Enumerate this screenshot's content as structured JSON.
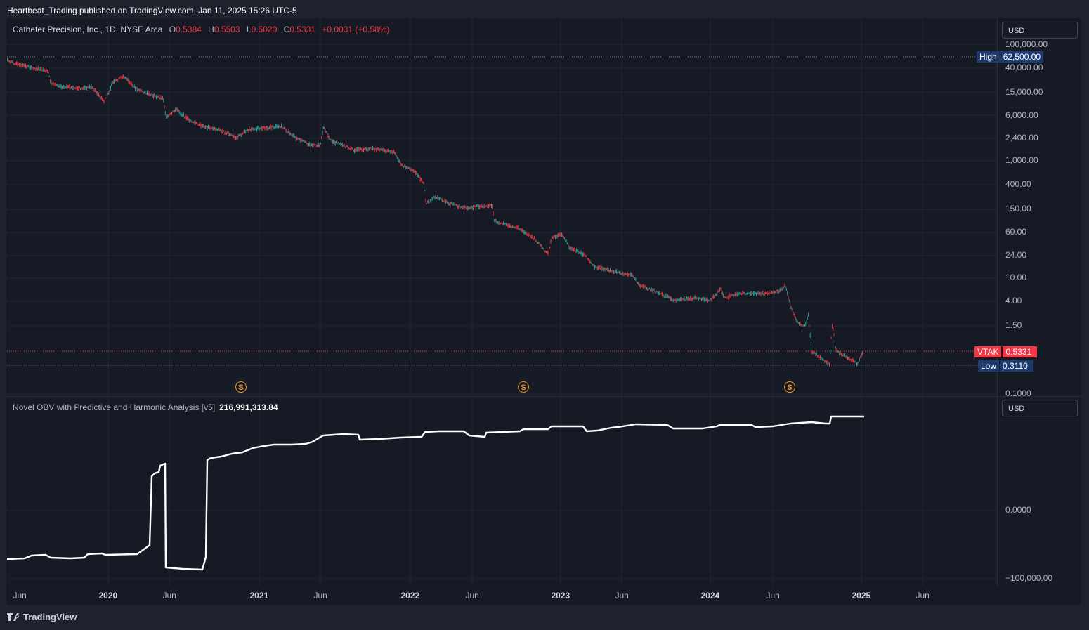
{
  "publish_bar": "Heartbeat_Trading published on TradingView.com, Jan 11, 2025 15:26 UTC-5",
  "legend": {
    "symbol": "Catheter Precision, Inc., 1D, NYSE Arca",
    "open_label": "O",
    "open": "0.5384",
    "high_label": "H",
    "high": "0.5503",
    "low_label": "L",
    "low": "0.5020",
    "close_label": "C",
    "close": "0.5331",
    "change": "+0.0031 (+0.58%)"
  },
  "currency_main": "USD",
  "currency_indicator": "USD",
  "price_axis": [
    "100,000.00",
    "40,000.00",
    "15,000.00",
    "6,000.00",
    "2,400.00",
    "1,000.00",
    "400.00",
    "150.00",
    "60.00",
    "24.00",
    "10.00",
    "4.00",
    "1.50",
    "0.1000"
  ],
  "high_tag": {
    "label": "High",
    "value": "62,500.00"
  },
  "last_tag": {
    "label": "VTAK",
    "value": "0.5331"
  },
  "low_tag": {
    "label": "Low",
    "value": "0.3110"
  },
  "indicator": {
    "name": "Novel OBV with Predictive and Harmonic Analysis [v5]",
    "value": "216,991,313.84"
  },
  "indicator_axis": [
    "0.0000",
    "−100,000.00"
  ],
  "time_axis": [
    {
      "text": "Jun",
      "bold": false
    },
    {
      "text": "2020",
      "bold": true
    },
    {
      "text": "Jun",
      "bold": false
    },
    {
      "text": "2021",
      "bold": true
    },
    {
      "text": "Jun",
      "bold": false
    },
    {
      "text": "2022",
      "bold": true
    },
    {
      "text": "Jun",
      "bold": false
    },
    {
      "text": "2023",
      "bold": true
    },
    {
      "text": "Jun",
      "bold": false
    },
    {
      "text": "2024",
      "bold": true
    },
    {
      "text": "Jun",
      "bold": false
    },
    {
      "text": "2025",
      "bold": true
    },
    {
      "text": "Jun",
      "bold": false
    }
  ],
  "split_marker": "S",
  "footer": "TradingView",
  "colors": {
    "up": "#26a69a",
    "down": "#f23645",
    "obv": "#ffffff",
    "high_low_tag": "#1c3a6e",
    "last_tag": "#f23645"
  }
}
